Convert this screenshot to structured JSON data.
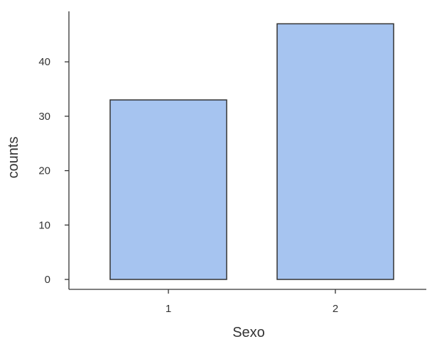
{
  "chart_data": {
    "type": "bar",
    "categories": [
      "1",
      "2"
    ],
    "values": [
      33,
      47
    ],
    "xlabel": "Sexo",
    "ylabel": "counts",
    "ylim": [
      0,
      48
    ],
    "yticks": [
      "0",
      "10",
      "20",
      "30",
      "40"
    ],
    "grid": false,
    "legend": "none",
    "bar_color": "#a6c4f0",
    "bar_border_color": "#333333"
  }
}
